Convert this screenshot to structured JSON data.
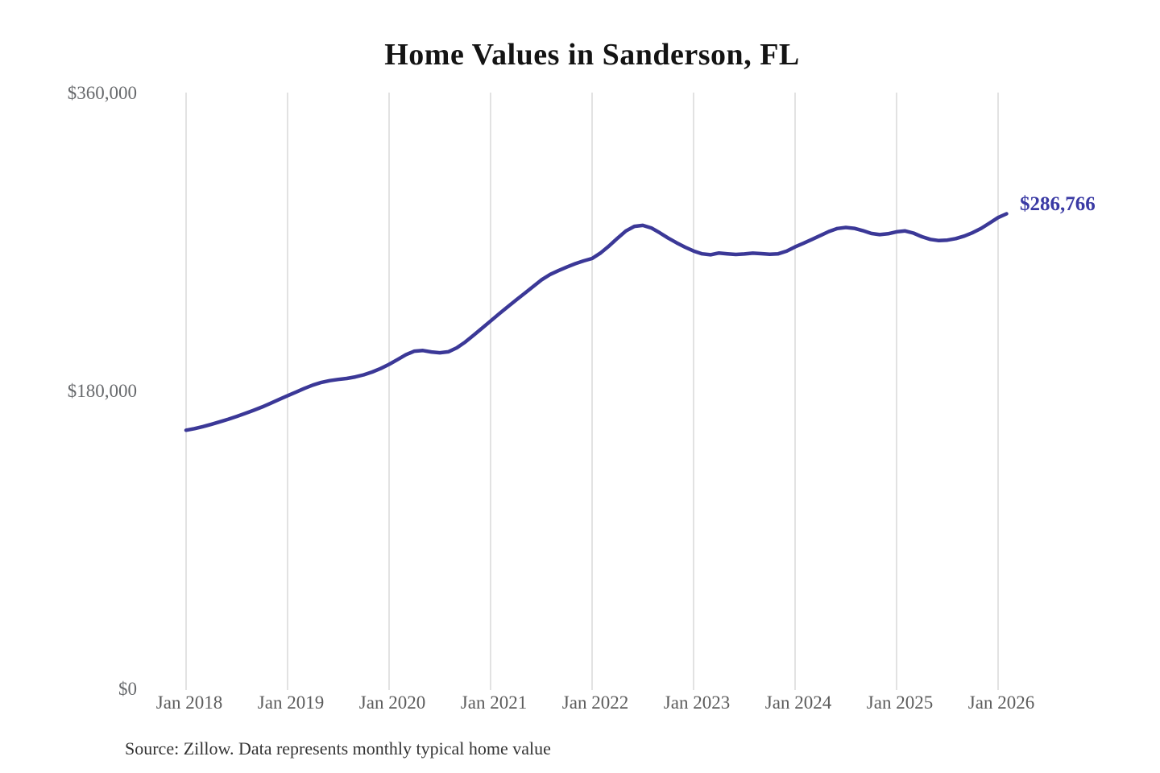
{
  "title": "Home Values in Sanderson, FL",
  "source_note": "Source: Zillow. Data represents monthly typical home value",
  "colors": {
    "line": "#3b3897",
    "end_label": "#3a3aa4",
    "gridline": "#cfcfcf",
    "axis_text": "#5c5c5c",
    "title_text": "#141414",
    "source_text": "#333333"
  },
  "chart_data": {
    "type": "line",
    "title": "Home Values in Sanderson, FL",
    "series_name": "Typical home value",
    "x_start": "Jan 2018",
    "frequency": "monthly",
    "x_ticks": [
      "Jan 2018",
      "Jan 2019",
      "Jan 2020",
      "Jan 2021",
      "Jan 2022",
      "Jan 2023",
      "Jan 2024",
      "Jan 2025",
      "Jan 2026"
    ],
    "y_ticks": [
      {
        "value": 0,
        "label": "$0"
      },
      {
        "value": 180000,
        "label": "$180,000"
      },
      {
        "value": 360000,
        "label": "$360,000"
      }
    ],
    "ylim": [
      0,
      360000
    ],
    "grid": "vertical-only",
    "legend": "none",
    "final_value": 286766,
    "final_value_label": "$286,766",
    "values": [
      156000,
      157000,
      158200,
      159600,
      161100,
      162700,
      164400,
      166200,
      168100,
      170100,
      172300,
      174600,
      176900,
      179100,
      181300,
      183300,
      184900,
      186000,
      186700,
      187300,
      188200,
      189500,
      191200,
      193300,
      195800,
      198700,
      201700,
      203800,
      204200,
      203300,
      202800,
      203400,
      205800,
      209300,
      213400,
      217700,
      222000,
      226300,
      230500,
      234600,
      238600,
      242700,
      246800,
      250000,
      252400,
      254600,
      256600,
      258300,
      259800,
      263100,
      267300,
      272000,
      276400,
      279200,
      279800,
      278200,
      275300,
      272100,
      269200,
      266600,
      264300,
      262600,
      262000,
      263100,
      262600,
      262200,
      262500,
      263000,
      262700,
      262300,
      262600,
      264200,
      266800,
      269000,
      271300,
      273700,
      276100,
      277900,
      278500,
      278000,
      276600,
      274900,
      274200,
      274700,
      275900,
      276400,
      275100,
      272900,
      271300,
      270600,
      270900,
      271800,
      273300,
      275400,
      278000,
      281200,
      284500,
      286766
    ]
  }
}
